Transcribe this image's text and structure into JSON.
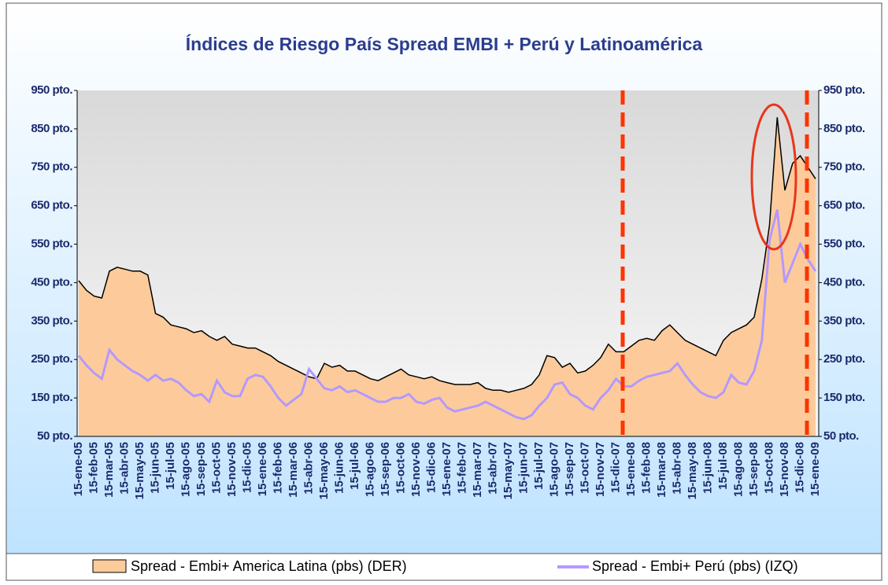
{
  "chart_data": {
    "type": "area_line",
    "title": "Índices de Riesgo País Spread EMBI + Perú y Latinoamérica",
    "categories": [
      "15-ene-05",
      null,
      "15-feb-05",
      null,
      "15-mar-05",
      null,
      "15-abr-05",
      null,
      "15-may-05",
      null,
      "15-jun-05",
      null,
      "15-jul-05",
      null,
      "15-ago-05",
      null,
      "15-sep-05",
      null,
      "15-oct-05",
      null,
      "15-nov-05",
      null,
      "15-dic-05",
      null,
      "15-ene-06",
      null,
      "15-feb-06",
      null,
      "15-mar-06",
      null,
      "15-abr-06",
      null,
      "15-may-06",
      null,
      "15-jun-06",
      null,
      "15-jul-06",
      null,
      "15-ago-06",
      null,
      "15-sep-06",
      null,
      "15-oct-06",
      null,
      "15-nov-06",
      null,
      "15-dic-06",
      null,
      "15-ene-07",
      null,
      "15-feb-07",
      null,
      "15-mar-07",
      null,
      "15-abr-07",
      null,
      "15-may-07",
      null,
      "15-jun-07",
      null,
      "15-jul-07",
      null,
      "15-ago-07",
      null,
      "15-sep-07",
      null,
      "15-oct-07",
      null,
      "15-nov-07",
      null,
      "15-dic-07",
      null,
      "15-ene-08",
      null,
      "15-feb-08",
      null,
      "15-mar-08",
      null,
      "15-abr-08",
      null,
      "15-may-08",
      null,
      "15-jun-08",
      null,
      "15-jul-08",
      null,
      "15-ago-08",
      null,
      "15-sep-08",
      null,
      "15-oct-08",
      null,
      "15-nov-08",
      null,
      "15-dic-08",
      null,
      "15-ene-09"
    ],
    "series": [
      {
        "name": "Spread - Embi+ America Latina (pbs) (DER)",
        "color": "#fdcb9b",
        "axis": "y2",
        "values": [
          455,
          430,
          415,
          410,
          480,
          490,
          485,
          480,
          480,
          470,
          370,
          360,
          340,
          335,
          330,
          320,
          325,
          310,
          300,
          310,
          290,
          285,
          280,
          280,
          270,
          260,
          245,
          235,
          225,
          215,
          205,
          200,
          240,
          230,
          235,
          220,
          220,
          210,
          200,
          195,
          205,
          215,
          225,
          210,
          205,
          200,
          205,
          195,
          190,
          185,
          185,
          185,
          190,
          175,
          170,
          170,
          165,
          170,
          175,
          185,
          210,
          260,
          255,
          230,
          240,
          215,
          220,
          235,
          255,
          290,
          270,
          270,
          285,
          300,
          305,
          300,
          325,
          340,
          320,
          300,
          290,
          280,
          270,
          260,
          300,
          320,
          330,
          340,
          360,
          460,
          600,
          880,
          690,
          760,
          780,
          750,
          720
        ]
      },
      {
        "name": "Spread - Embi+ Perú (pbs) (IZQ)",
        "color": "#b399ff",
        "axis": "y",
        "values": [
          260,
          235,
          215,
          200,
          275,
          250,
          235,
          220,
          210,
          195,
          210,
          195,
          200,
          190,
          170,
          155,
          160,
          140,
          195,
          165,
          155,
          155,
          200,
          210,
          205,
          180,
          150,
          130,
          145,
          160,
          225,
          200,
          175,
          170,
          180,
          165,
          170,
          160,
          150,
          140,
          140,
          150,
          150,
          160,
          140,
          135,
          145,
          150,
          125,
          115,
          120,
          125,
          130,
          140,
          130,
          120,
          110,
          100,
          95,
          105,
          130,
          150,
          185,
          190,
          160,
          150,
          130,
          120,
          150,
          170,
          200,
          180,
          180,
          195,
          205,
          210,
          215,
          220,
          240,
          210,
          185,
          165,
          155,
          150,
          165,
          210,
          190,
          185,
          220,
          300,
          560,
          640,
          450,
          500,
          550,
          510,
          480
        ]
      }
    ],
    "ylim": [
      50,
      950
    ],
    "yticks": [
      {
        "value": 50,
        "label": "50 pto."
      },
      {
        "value": 150,
        "label": "150 pto."
      },
      {
        "value": 250,
        "label": "250 pto."
      },
      {
        "value": 350,
        "label": "350 pto."
      },
      {
        "value": 450,
        "label": "450 pto."
      },
      {
        "value": 550,
        "label": "550 pto."
      },
      {
        "value": 650,
        "label": "650 pto."
      },
      {
        "value": 750,
        "label": "750 pto."
      },
      {
        "value": 850,
        "label": "850 pto."
      },
      {
        "value": 950,
        "label": "950 pto."
      }
    ],
    "y2lim": [
      50,
      950
    ],
    "y2ticks": [
      {
        "value": 50,
        "label": "50 pto."
      },
      {
        "value": 150,
        "label": "150 pto."
      },
      {
        "value": 250,
        "label": "250 pto."
      },
      {
        "value": 350,
        "label": "350 pto."
      },
      {
        "value": 450,
        "label": "450 pto."
      },
      {
        "value": 550,
        "label": "550 pto."
      },
      {
        "value": 650,
        "label": "650 pto."
      },
      {
        "value": 750,
        "label": "750 pto."
      },
      {
        "value": 850,
        "label": "850 pto."
      },
      {
        "value": 950,
        "label": "950 pto."
      }
    ]
  }
}
